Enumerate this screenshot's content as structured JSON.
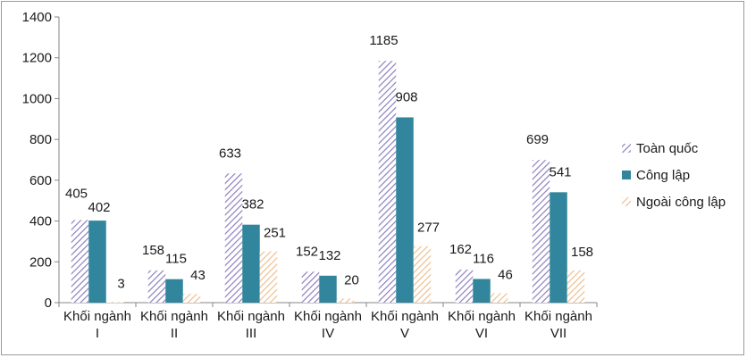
{
  "chart_data": {
    "type": "bar",
    "categories": [
      [
        "Khối ngành",
        "I"
      ],
      [
        "Khối ngành",
        "II"
      ],
      [
        "Khối ngành",
        "III"
      ],
      [
        "Khối ngành",
        "IV"
      ],
      [
        "Khối ngành",
        "V"
      ],
      [
        "Khối ngành",
        "VI"
      ],
      [
        "Khối ngành",
        "VII"
      ]
    ],
    "series": [
      {
        "name": "Toàn quốc",
        "values": [
          405,
          158,
          633,
          152,
          1185,
          162,
          699
        ],
        "color": "#9b8fc4",
        "pattern": "diagonal-hatch-purple"
      },
      {
        "name": "Công lập",
        "values": [
          402,
          115,
          382,
          132,
          908,
          116,
          541
        ],
        "color": "#31859c",
        "pattern": "solid"
      },
      {
        "name": "Ngoài công lập",
        "values": [
          3,
          43,
          251,
          20,
          277,
          46,
          158
        ],
        "color": "#f1c69c",
        "pattern": "diagonal-hatch-orange"
      }
    ],
    "ylim": [
      0,
      1400
    ],
    "yticks": [
      0,
      200,
      400,
      600,
      800,
      1000,
      1200,
      1400
    ],
    "grid": false,
    "legend_position": "right"
  }
}
